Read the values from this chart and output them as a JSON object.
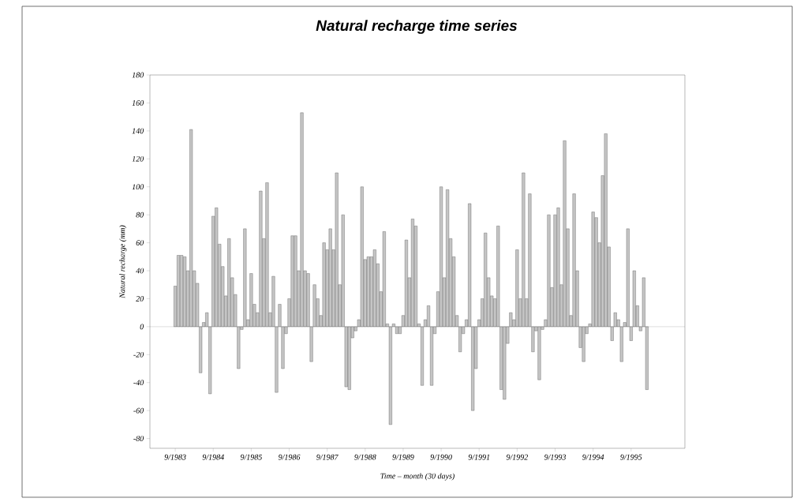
{
  "chart_data": {
    "type": "bar",
    "title": "Natural recharge time series",
    "xlabel": "Time – month (30 days)",
    "ylabel": "Natural recharge (mm)",
    "x": [
      "1983-09",
      "1983-10",
      "1983-11",
      "1983-12",
      "1984-01",
      "1984-02",
      "1984-03",
      "1984-04",
      "1984-05",
      "1984-06",
      "1984-07",
      "1984-08",
      "1984-09",
      "1984-10",
      "1984-11",
      "1984-12",
      "1985-01",
      "1985-02",
      "1985-03",
      "1985-04",
      "1985-05",
      "1985-06",
      "1985-07",
      "1985-08",
      "1985-09",
      "1985-10",
      "1985-11",
      "1985-12",
      "1986-01",
      "1986-02",
      "1986-03",
      "1986-04",
      "1986-05",
      "1986-06",
      "1986-07",
      "1986-08",
      "1986-09",
      "1986-10",
      "1986-11",
      "1986-12",
      "1987-01",
      "1987-02",
      "1987-03",
      "1987-04",
      "1987-05",
      "1987-06",
      "1987-07",
      "1987-08",
      "1987-09",
      "1987-10",
      "1987-11",
      "1987-12",
      "1988-01",
      "1988-02",
      "1988-03",
      "1988-04",
      "1988-05",
      "1988-06",
      "1988-07",
      "1988-08",
      "1988-09",
      "1988-10",
      "1988-11",
      "1988-12",
      "1989-01",
      "1989-02",
      "1989-03",
      "1989-04",
      "1989-05",
      "1989-06",
      "1989-07",
      "1989-08",
      "1989-09",
      "1989-10",
      "1989-11",
      "1989-12",
      "1990-01",
      "1990-02",
      "1990-03",
      "1990-04",
      "1990-05",
      "1990-06",
      "1990-07",
      "1990-08",
      "1990-09",
      "1990-10",
      "1990-11",
      "1990-12",
      "1991-01",
      "1991-02",
      "1991-03",
      "1991-04",
      "1991-05",
      "1991-06",
      "1991-07",
      "1991-08",
      "1991-09",
      "1991-10",
      "1991-11",
      "1991-12",
      "1992-01",
      "1992-02",
      "1992-03",
      "1992-04",
      "1992-05",
      "1992-06",
      "1992-07",
      "1992-08",
      "1992-09",
      "1992-10",
      "1992-11",
      "1992-12",
      "1993-01",
      "1993-02",
      "1993-03",
      "1993-04",
      "1993-05",
      "1993-06",
      "1993-07",
      "1993-08",
      "1993-09",
      "1993-10",
      "1993-11",
      "1993-12",
      "1994-01",
      "1994-02",
      "1994-03",
      "1994-04",
      "1994-05",
      "1994-06",
      "1994-07",
      "1994-08",
      "1994-09",
      "1994-10",
      "1994-11",
      "1994-12",
      "1995-01",
      "1995-02",
      "1995-03",
      "1995-04",
      "1995-05",
      "1995-06",
      "1995-07",
      "1995-08",
      "1995-09",
      "1995-10",
      "1995-11",
      "1995-12",
      "1996-01",
      "1996-02"
    ],
    "values": [
      29,
      51,
      51,
      50,
      40,
      141,
      40,
      31,
      -33,
      3,
      10,
      -48,
      79,
      85,
      59,
      43,
      22,
      63,
      35,
      23,
      -30,
      -2,
      70,
      5,
      38,
      16,
      10,
      97,
      63,
      103,
      10,
      36,
      -47,
      16,
      -30,
      -5,
      20,
      65,
      65,
      40,
      153,
      40,
      38,
      -25,
      30,
      20,
      8,
      60,
      55,
      70,
      55,
      110,
      30,
      80,
      -43,
      -45,
      -8,
      -3,
      5,
      100,
      48,
      50,
      50,
      55,
      45,
      25,
      68,
      2,
      -70,
      2,
      -5,
      -5,
      8,
      62,
      35,
      77,
      72,
      2,
      -42,
      5,
      15,
      -42,
      -5,
      25,
      100,
      35,
      98,
      63,
      50,
      8,
      -18,
      -5,
      5,
      88,
      -60,
      -30,
      5,
      20,
      67,
      35,
      22,
      20,
      72,
      -45,
      -52,
      -12,
      10,
      5,
      55,
      20,
      110,
      20,
      95,
      -18,
      -3,
      -38,
      -2,
      5,
      80,
      28,
      80,
      85,
      30,
      133,
      70,
      8,
      95,
      40,
      -15,
      -25,
      -5,
      2,
      82,
      78,
      60,
      108,
      138,
      57,
      -10,
      10,
      5,
      -25,
      3,
      70,
      -10,
      40,
      15,
      -3,
      35,
      -45
    ],
    "color": "#5a5a5a",
    "xlim": [
      "1983-01",
      "1997-02"
    ],
    "xticks": [
      {
        "value": "1983-09",
        "label": "9/1983"
      },
      {
        "value": "1984-09",
        "label": "9/1984"
      },
      {
        "value": "1985-09",
        "label": "9/1985"
      },
      {
        "value": "1986-09",
        "label": "9/1986"
      },
      {
        "value": "1987-09",
        "label": "9/1987"
      },
      {
        "value": "1988-09",
        "label": "9/1988"
      },
      {
        "value": "1989-09",
        "label": "9/1989"
      },
      {
        "value": "1990-09",
        "label": "9/1990"
      },
      {
        "value": "1991-09",
        "label": "9/1991"
      },
      {
        "value": "1992-09",
        "label": "9/1992"
      },
      {
        "value": "1993-09",
        "label": "9/1993"
      },
      {
        "value": "1994-09",
        "label": "9/1994"
      },
      {
        "value": "1995-09",
        "label": "9/1995"
      }
    ],
    "ylim": [
      -87,
      180
    ],
    "yticks": [
      -80,
      -60,
      -40,
      -20,
      0,
      20,
      40,
      60,
      80,
      100,
      120,
      140,
      160,
      180
    ]
  }
}
